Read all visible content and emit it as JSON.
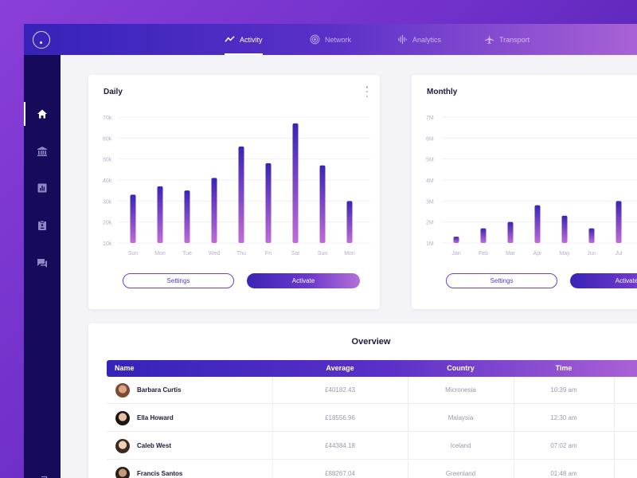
{
  "nav": {
    "items": [
      {
        "label": "Activity",
        "icon": "activity-icon",
        "active": true
      },
      {
        "label": "Network",
        "icon": "network-icon",
        "active": false
      },
      {
        "label": "Analytics",
        "icon": "analytics-icon",
        "active": false
      },
      {
        "label": "Transport",
        "icon": "plane-icon",
        "active": false
      }
    ]
  },
  "sidebar": {
    "items": [
      {
        "icon": "home-icon",
        "active": true
      },
      {
        "icon": "bank-icon",
        "active": false
      },
      {
        "icon": "chart-icon",
        "active": false
      },
      {
        "icon": "clipboard-icon",
        "active": false
      },
      {
        "icon": "chat-icon",
        "active": false
      }
    ],
    "logout_icon": "logout-icon"
  },
  "daily": {
    "title": "Daily",
    "settings_label": "Settings",
    "activate_label": "Activate"
  },
  "monthly": {
    "title": "Monthly",
    "settings_label": "Settings",
    "activate_label": "Activate"
  },
  "chart_data": [
    {
      "type": "bar",
      "title": "Daily",
      "categories": [
        "Sun",
        "Mon",
        "Tue",
        "Wed",
        "Thu",
        "Fri",
        "Sat",
        "Sun",
        "Mon"
      ],
      "values": [
        33000,
        37000,
        35000,
        41000,
        56000,
        48000,
        67000,
        47000,
        30000
      ],
      "yticks": [
        "10k",
        "20k",
        "30k",
        "40k",
        "50k",
        "60k",
        "70k"
      ],
      "ylim": [
        10000,
        70000
      ],
      "grid": true
    },
    {
      "type": "bar",
      "title": "Monthly",
      "categories": [
        "Jan",
        "Feb",
        "Mar",
        "Apr",
        "May",
        "Jun",
        "Jul"
      ],
      "values": [
        1300000,
        1700000,
        2000000,
        2800000,
        2300000,
        1700000,
        3000000
      ],
      "yticks": [
        "1M",
        "2M",
        "3M",
        "4M",
        "5M",
        "6M",
        "7M"
      ],
      "ylim": [
        1000000,
        7000000
      ],
      "grid": true
    }
  ],
  "overview": {
    "title": "Overview",
    "columns": [
      "Name",
      "Average",
      "Country",
      "Time"
    ],
    "rows": [
      {
        "name": "Barbara Curtis",
        "average": "£40182.43",
        "country": "Micronesia",
        "time": "10:39 am"
      },
      {
        "name": "Ella Howard",
        "average": "£18556.96",
        "country": "Malaysia",
        "time": "12:30 am"
      },
      {
        "name": "Caleb West",
        "average": "£44384.18",
        "country": "Iceland",
        "time": "07:02 am"
      },
      {
        "name": "Francis Santos",
        "average": "£88267.04",
        "country": "Greenland",
        "time": "01:48 am"
      }
    ]
  },
  "colors": {
    "accent": "#5a30c8",
    "bar_top": "#3a24b6",
    "bar_bottom": "#c06bd6",
    "sidebar": "#160a5a"
  }
}
